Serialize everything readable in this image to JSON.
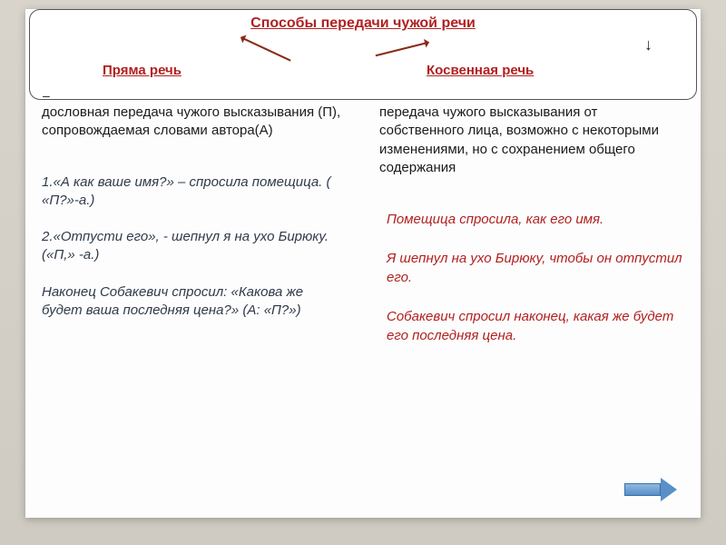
{
  "header": {
    "title": "Способы передачи чужой речи",
    "left": "Пряма речь",
    "right": "Косвенная речь"
  },
  "left_col": {
    "def": "дословная передача чужого высказывания (П), сопровождаемая словами автора(А)",
    "ex1": "1.«А как ваше имя?» – спросила помещица. ( «П?»-а.)",
    "ex2": "2.«Отпусти его», - шепнул я на ухо Бирюку. («П,» -а.)",
    "ex3": "Наконец Собакевич спросил: «Какова же будет ваша последняя цена?» (А: «П?»)"
  },
  "right_col": {
    "def": "передача чужого высказывания от собственного лица, возможно с некоторыми изменениями, но с сохранением общего содержания",
    "ex1": "Помещица спросила, как его имя.",
    "ex2": "Я шепнул на ухо Бирюку, чтобы он отпустил его.",
    "ex3": "Собакевич спросил наконец, какая же будет его последняя цена."
  },
  "colors": {
    "accent": "#b22020",
    "text": "#1a1a1a",
    "example_dark": "#2f3a4a",
    "bg_outer": "#d5d1c8",
    "bg_slide": "#fdfdfd"
  }
}
